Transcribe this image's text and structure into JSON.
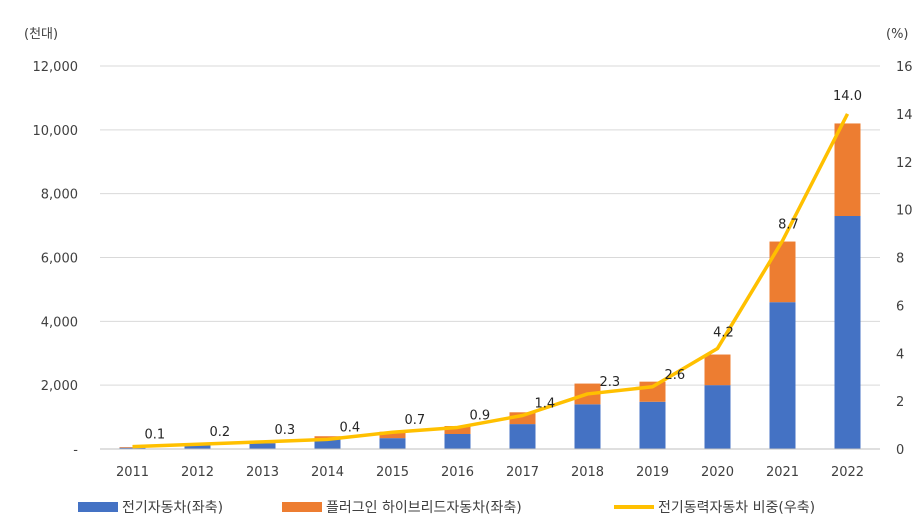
{
  "chart_data": {
    "type": "bar",
    "stacked": true,
    "categories": [
      "2011",
      "2012",
      "2013",
      "2014",
      "2015",
      "2016",
      "2017",
      "2018",
      "2019",
      "2020",
      "2021",
      "2022"
    ],
    "series": [
      {
        "name": "전기자동차(좌축)",
        "kind": "bar",
        "axis": "left",
        "color": "#4472C4",
        "values": [
          40,
          120,
          180,
          300,
          340,
          470,
          780,
          1400,
          1480,
          2000,
          4600,
          7300
        ]
      },
      {
        "name": "플러그인 하이브리드자동차(좌축)",
        "kind": "bar",
        "axis": "left",
        "color": "#ED7D31",
        "values": [
          20,
          10,
          60,
          100,
          200,
          250,
          370,
          650,
          630,
          960,
          1900,
          2900
        ]
      },
      {
        "name": "전기동력자동차 비중(우축)",
        "kind": "line",
        "axis": "right",
        "color": "#FFC000",
        "values": [
          0.1,
          0.2,
          0.3,
          0.4,
          0.7,
          0.9,
          1.4,
          2.3,
          2.6,
          4.2,
          8.7,
          14.0
        ],
        "labels": [
          "0.1",
          "0.2",
          "0.3",
          "0.4",
          "0.7",
          "0.9",
          "1.4",
          "2.3",
          "2.6",
          "4.2",
          "8.7",
          "14.0"
        ]
      }
    ],
    "y_left": {
      "unit": "(천대)",
      "range": [
        0,
        12000
      ],
      "ticks": [
        0,
        2000,
        4000,
        6000,
        8000,
        10000,
        12000
      ],
      "tick_labels": [
        "-",
        "2,000",
        "4,000",
        "6,000",
        "8,000",
        "10,000",
        "12,000"
      ]
    },
    "y_right": {
      "unit": "(%)",
      "range": [
        0,
        16
      ],
      "ticks": [
        0,
        2,
        4,
        6,
        8,
        10,
        12,
        14,
        16
      ],
      "tick_labels": [
        "0",
        "2",
        "4",
        "6",
        "8",
        "10",
        "12",
        "14",
        "16"
      ]
    },
    "grid": true,
    "legend_position": "bottom"
  }
}
